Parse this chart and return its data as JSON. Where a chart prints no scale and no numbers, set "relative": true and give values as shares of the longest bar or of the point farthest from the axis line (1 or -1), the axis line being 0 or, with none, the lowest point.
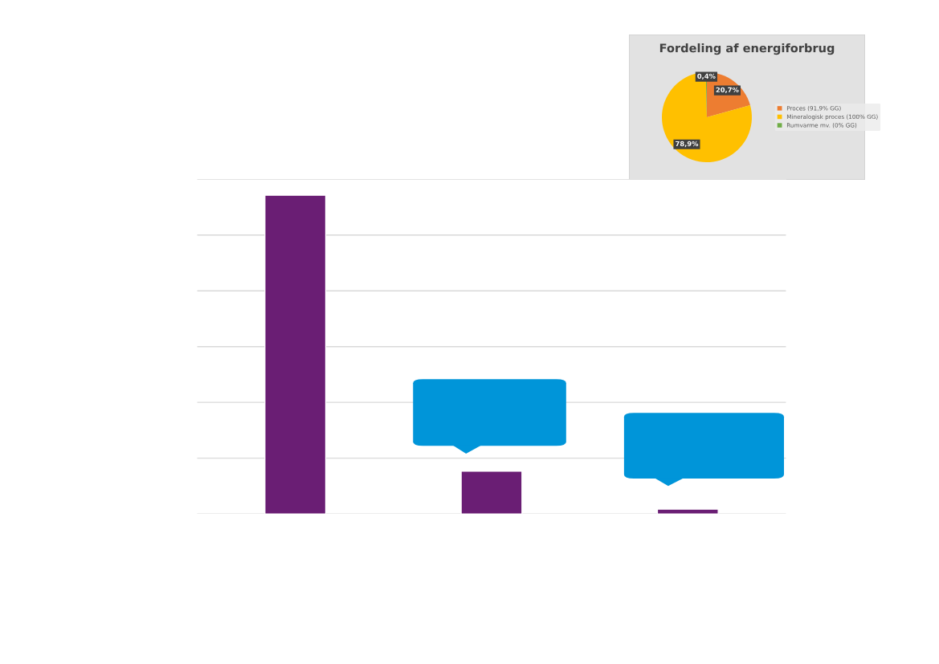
{
  "chart_data": [
    {
      "type": "pie",
      "title": "Fordeling af energiforbrug",
      "categories": [
        "Proces (91,9% GG)",
        "Mineralogisk proces (100% GG)",
        "Rumvarme mv. (0% GG)"
      ],
      "values": [
        20.7,
        78.9,
        0.4
      ],
      "colors": [
        "#ed7d31",
        "#ffc000",
        "#70ad47"
      ],
      "value_labels": [
        "20,7%",
        "78,9%",
        "0,4%"
      ],
      "legend": "right"
    },
    {
      "type": "bar",
      "categories": [
        null,
        null,
        null
      ],
      "values": [
        1,
        0.134,
        0.015
      ],
      "color": "#6a1e74",
      "relative": true,
      "grid": "y"
    }
  ]
}
